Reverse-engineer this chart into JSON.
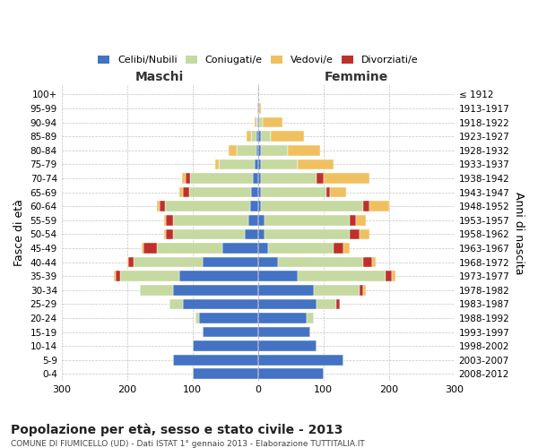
{
  "age_groups": [
    "0-4",
    "5-9",
    "10-14",
    "15-19",
    "20-24",
    "25-29",
    "30-34",
    "35-39",
    "40-44",
    "45-49",
    "50-54",
    "55-59",
    "60-64",
    "65-69",
    "70-74",
    "75-79",
    "80-84",
    "85-89",
    "90-94",
    "95-99",
    "100+"
  ],
  "birth_years": [
    "2008-2012",
    "2003-2007",
    "1998-2002",
    "1993-1997",
    "1988-1992",
    "1983-1987",
    "1978-1982",
    "1973-1977",
    "1968-1972",
    "1963-1967",
    "1958-1962",
    "1953-1957",
    "1948-1952",
    "1943-1947",
    "1938-1942",
    "1933-1937",
    "1928-1932",
    "1923-1927",
    "1918-1922",
    "1913-1917",
    "≤ 1912"
  ],
  "males": {
    "celibi": [
      100,
      130,
      100,
      85,
      90,
      115,
      130,
      120,
      85,
      55,
      20,
      15,
      12,
      10,
      8,
      5,
      3,
      2,
      1,
      1,
      1
    ],
    "coniugati": [
      0,
      0,
      0,
      0,
      5,
      20,
      50,
      90,
      105,
      100,
      110,
      115,
      130,
      95,
      95,
      55,
      30,
      8,
      2,
      0,
      0
    ],
    "vedovi": [
      0,
      0,
      0,
      0,
      0,
      0,
      1,
      2,
      2,
      3,
      3,
      3,
      4,
      5,
      5,
      5,
      12,
      8,
      2,
      0,
      0
    ],
    "divorziati": [
      0,
      0,
      0,
      0,
      0,
      0,
      0,
      8,
      8,
      20,
      10,
      10,
      8,
      10,
      8,
      0,
      0,
      0,
      0,
      0,
      0
    ]
  },
  "females": {
    "nubili": [
      100,
      130,
      90,
      80,
      75,
      90,
      85,
      60,
      30,
      15,
      10,
      10,
      5,
      5,
      5,
      5,
      5,
      5,
      2,
      2,
      1
    ],
    "coniugate": [
      0,
      0,
      0,
      0,
      10,
      30,
      70,
      135,
      130,
      100,
      130,
      130,
      155,
      100,
      85,
      55,
      40,
      15,
      5,
      0,
      0
    ],
    "vedove": [
      0,
      0,
      0,
      0,
      0,
      0,
      5,
      5,
      5,
      10,
      15,
      15,
      30,
      25,
      70,
      55,
      50,
      50,
      30,
      3,
      0
    ],
    "divorziate": [
      0,
      0,
      0,
      0,
      0,
      5,
      5,
      10,
      15,
      15,
      15,
      10,
      10,
      5,
      10,
      0,
      0,
      0,
      0,
      0,
      0
    ]
  },
  "colors": {
    "celibi_nubili": "#4472c4",
    "coniugati": "#c5d9a0",
    "vedovi": "#f0c060",
    "divorziati": "#c0302a"
  },
  "xlim": 300,
  "title": "Popolazione per età, sesso e stato civile - 2013",
  "subtitle": "COMUNE DI FIUMICELLO (UD) - Dati ISTAT 1° gennaio 2013 - Elaborazione TUTTITALIA.IT",
  "ylabel_left": "Fasce di età",
  "ylabel_right": "Anni di nascita",
  "xlabel_left": "Maschi",
  "xlabel_right": "Femmine"
}
